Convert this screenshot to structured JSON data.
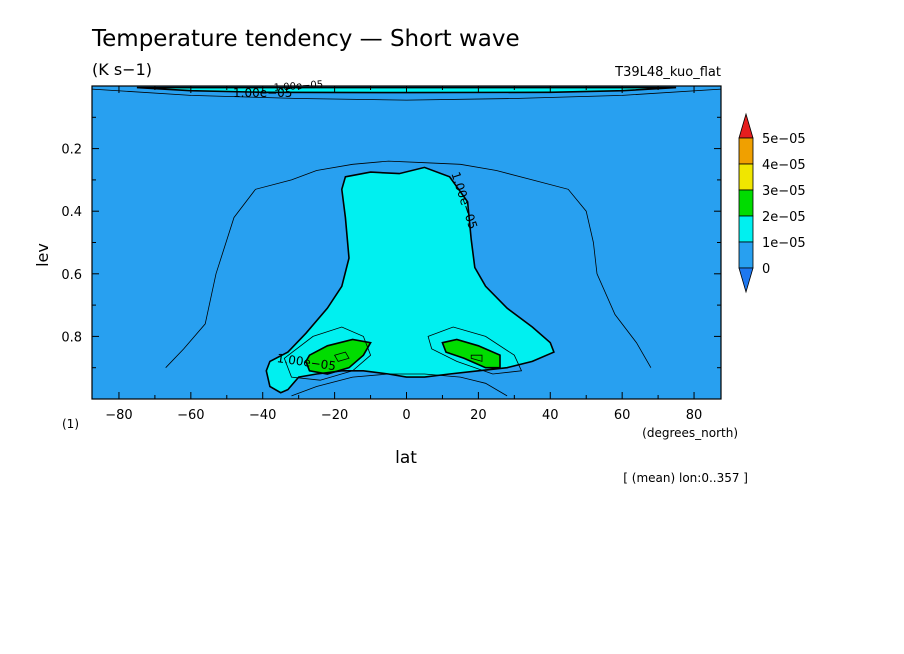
{
  "chart_data": {
    "type": "heatmap",
    "title": "Temperature tendency — Short wave",
    "units": "(K s−1)",
    "run_label": "T39L48_kuo_flat",
    "xlabel": "lat",
    "xunits": "(degrees_north)",
    "ylabel": "lev",
    "yunits": "(1)",
    "mean_note": "[ (mean) lon:0..357 ]",
    "xlim": [
      -87.5,
      87.5
    ],
    "ylim": [
      1.0,
      0.0
    ],
    "x_ticks": [
      {
        "value": -80,
        "label": "−80"
      },
      {
        "value": -60,
        "label": "−60"
      },
      {
        "value": -40,
        "label": "−40"
      },
      {
        "value": -20,
        "label": "−20"
      },
      {
        "value": 0,
        "label": "0"
      },
      {
        "value": 20,
        "label": "20"
      },
      {
        "value": 40,
        "label": "40"
      },
      {
        "value": 60,
        "label": "60"
      },
      {
        "value": 80,
        "label": "80"
      }
    ],
    "y_ticks": [
      {
        "value": 0.2,
        "label": "0.2"
      },
      {
        "value": 0.4,
        "label": "0.4"
      },
      {
        "value": 0.6,
        "label": "0.6"
      },
      {
        "value": 0.8,
        "label": "0.8"
      }
    ],
    "colorbar": {
      "levels": [
        "0",
        "1e−05",
        "2e−05",
        "3e−05",
        "4e−05",
        "5e−05"
      ],
      "colors": [
        "#1e78f0",
        "#28a0f0",
        "#00f0f0",
        "#00dc00",
        "#f0e600",
        "#f0a000",
        "#e61e1e"
      ]
    },
    "contour_labels": [
      "1.00e−05",
      "1.00e−05",
      "1.00e−05",
      "1.00e−05"
    ],
    "regions": [
      {
        "name": "band-0-1e-05",
        "fill": "#28a0f0",
        "points": [
          [
            -87.5,
            0.0
          ],
          [
            87.5,
            0.0
          ],
          [
            87.5,
            1.0
          ],
          [
            -87.5,
            1.0
          ]
        ]
      },
      {
        "name": "band-1e-05-2e-05-top",
        "fill": "#00f0f0",
        "points": [
          [
            -75,
            0.005
          ],
          [
            75,
            0.005
          ],
          [
            60,
            0.015
          ],
          [
            40,
            0.02
          ],
          [
            0,
            0.021
          ],
          [
            -40,
            0.02
          ],
          [
            -60,
            0.015
          ]
        ]
      },
      {
        "name": "band-1e-05-2e-05-core",
        "fill": "#00f0f0",
        "points": [
          [
            -17,
            0.29
          ],
          [
            -10,
            0.275
          ],
          [
            -2,
            0.28
          ],
          [
            5,
            0.26
          ],
          [
            12,
            0.29
          ],
          [
            17,
            0.37
          ],
          [
            18,
            0.49
          ],
          [
            19,
            0.58
          ],
          [
            22,
            0.64
          ],
          [
            28,
            0.71
          ],
          [
            35,
            0.77
          ],
          [
            40,
            0.82
          ],
          [
            41,
            0.85
          ],
          [
            35,
            0.88
          ],
          [
            28,
            0.9
          ],
          [
            20,
            0.91
          ],
          [
            12,
            0.92
          ],
          [
            5,
            0.93
          ],
          [
            0,
            0.93
          ],
          [
            -5,
            0.92
          ],
          [
            -12,
            0.91
          ],
          [
            -18,
            0.91
          ],
          [
            -25,
            0.92
          ],
          [
            -30,
            0.93
          ],
          [
            -33,
            0.97
          ],
          [
            -35,
            0.98
          ],
          [
            -38,
            0.96
          ],
          [
            -39,
            0.91
          ],
          [
            -38,
            0.88
          ],
          [
            -33,
            0.85
          ],
          [
            -28,
            0.79
          ],
          [
            -22,
            0.71
          ],
          [
            -18,
            0.64
          ],
          [
            -16,
            0.55
          ],
          [
            -17,
            0.42
          ],
          [
            -18,
            0.33
          ]
        ]
      },
      {
        "name": "band-2e-05-3e-05-south",
        "fill": "#00dc00",
        "points": [
          [
            -27,
            0.86
          ],
          [
            -22,
            0.83
          ],
          [
            -15,
            0.81
          ],
          [
            -10,
            0.82
          ],
          [
            -12,
            0.86
          ],
          [
            -16,
            0.9
          ],
          [
            -22,
            0.92
          ],
          [
            -27,
            0.91
          ],
          [
            -28,
            0.88
          ]
        ]
      },
      {
        "name": "band-2e-05-3e-05-north",
        "fill": "#00dc00",
        "points": [
          [
            10,
            0.82
          ],
          [
            14,
            0.81
          ],
          [
            20,
            0.83
          ],
          [
            26,
            0.86
          ],
          [
            26,
            0.9
          ],
          [
            22,
            0.9
          ],
          [
            16,
            0.87
          ],
          [
            11,
            0.85
          ]
        ]
      }
    ],
    "contour_lines": [
      {
        "name": "contour-outer-5e-06",
        "width": 0.8,
        "closed": false,
        "points": [
          [
            -67,
            0.9
          ],
          [
            -62,
            0.84
          ],
          [
            -56,
            0.76
          ],
          [
            -53,
            0.6
          ],
          [
            -48,
            0.42
          ],
          [
            -42,
            0.33
          ],
          [
            -32,
            0.3
          ],
          [
            -25,
            0.27
          ],
          [
            -15,
            0.25
          ],
          [
            -5,
            0.24
          ],
          [
            5,
            0.245
          ],
          [
            15,
            0.25
          ],
          [
            25,
            0.27
          ],
          [
            35,
            0.3
          ],
          [
            45,
            0.33
          ],
          [
            50,
            0.4
          ],
          [
            52,
            0.5
          ],
          [
            53,
            0.6
          ],
          [
            58,
            0.73
          ],
          [
            64,
            0.82
          ],
          [
            68,
            0.9
          ]
        ]
      },
      {
        "name": "contour-bottom-arc",
        "width": 0.8,
        "closed": false,
        "points": [
          [
            -32,
            0.99
          ],
          [
            -25,
            0.96
          ],
          [
            -15,
            0.93
          ],
          [
            -5,
            0.92
          ],
          [
            5,
            0.92
          ],
          [
            15,
            0.93
          ],
          [
            22,
            0.95
          ],
          [
            28,
            0.99
          ]
        ]
      },
      {
        "name": "contour-inner-south",
        "width": 0.8,
        "closed": true,
        "points": [
          [
            -34,
            0.87
          ],
          [
            -26,
            0.8
          ],
          [
            -18,
            0.77
          ],
          [
            -12,
            0.8
          ],
          [
            -10,
            0.86
          ],
          [
            -15,
            0.91
          ],
          [
            -24,
            0.94
          ],
          [
            -32,
            0.93
          ]
        ]
      },
      {
        "name": "contour-inner-north",
        "width": 0.8,
        "closed": true,
        "points": [
          [
            6,
            0.8
          ],
          [
            13,
            0.77
          ],
          [
            22,
            0.8
          ],
          [
            30,
            0.86
          ],
          [
            32,
            0.91
          ],
          [
            24,
            0.92
          ],
          [
            14,
            0.88
          ],
          [
            7,
            0.84
          ]
        ]
      },
      {
        "name": "contour-small-south",
        "width": 0.8,
        "closed": true,
        "points": [
          [
            -20,
            0.86
          ],
          [
            -17,
            0.85
          ],
          [
            -16,
            0.87
          ],
          [
            -19,
            0.88
          ]
        ]
      },
      {
        "name": "contour-small-north",
        "width": 0.8,
        "closed": true,
        "points": [
          [
            18,
            0.86
          ],
          [
            21,
            0.86
          ],
          [
            21,
            0.88
          ],
          [
            18,
            0.87
          ]
        ]
      },
      {
        "name": "contour-top-arc",
        "width": 0.8,
        "closed": false,
        "points": [
          [
            -87.5,
            0.01
          ],
          [
            -60,
            0.03
          ],
          [
            -30,
            0.04
          ],
          [
            0,
            0.045
          ],
          [
            30,
            0.04
          ],
          [
            60,
            0.03
          ],
          [
            87.5,
            0.01
          ]
        ]
      }
    ]
  }
}
